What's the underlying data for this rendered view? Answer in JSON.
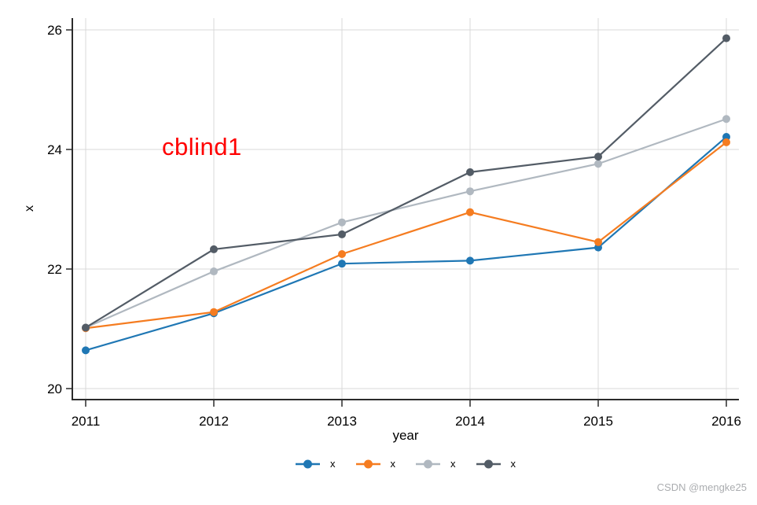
{
  "chart_data": {
    "type": "line",
    "x": [
      2011,
      2012,
      2013,
      2014,
      2015,
      2016
    ],
    "series": [
      {
        "name": "x",
        "color": "#1f77b4",
        "values": [
          20.64,
          21.26,
          22.09,
          22.14,
          22.36,
          24.21
        ]
      },
      {
        "name": "x",
        "color": "#f57c20",
        "values": [
          21.01,
          21.28,
          22.25,
          22.95,
          22.45,
          24.12
        ]
      },
      {
        "name": "x",
        "color": "#b0b8c0",
        "values": [
          21.02,
          21.96,
          22.78,
          23.3,
          23.76,
          24.51
        ]
      },
      {
        "name": "x",
        "color": "#535c66",
        "values": [
          21.02,
          22.33,
          22.58,
          23.62,
          23.88,
          25.86
        ]
      }
    ],
    "title": "",
    "xlabel": "year",
    "ylabel": "x",
    "yticks": [
      20,
      22,
      24,
      26
    ],
    "ylim": [
      19.8,
      26.2
    ],
    "grid": true,
    "legend_position": "bottom",
    "annotation": {
      "text": "cblind1",
      "color": "#ff0000"
    },
    "colors": {
      "gridline": "#d9d9d9",
      "axis": "#2b2b2b",
      "tick_label": "#000000"
    }
  },
  "watermark": "CSDN @mengke25"
}
